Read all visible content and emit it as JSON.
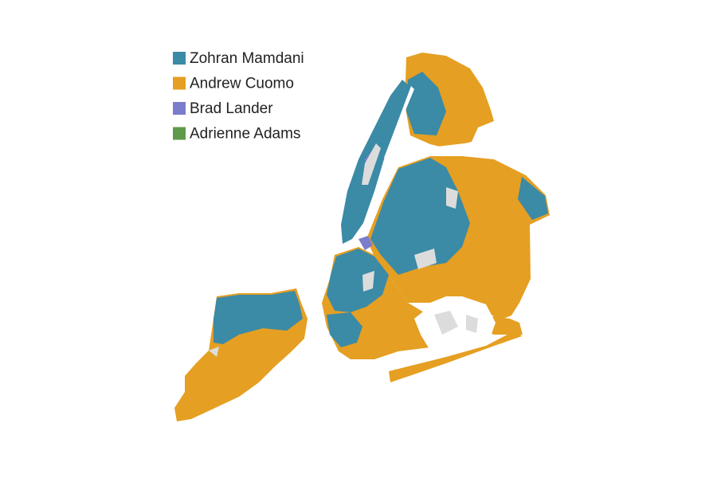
{
  "legend": [
    {
      "label": "Zohran Mamdani",
      "color": "#3b8aa6"
    },
    {
      "label": "Andrew Cuomo",
      "color": "#e59f22"
    },
    {
      "label": "Brad Lander",
      "color": "#7b7ccc"
    },
    {
      "label": "Adrienne Adams",
      "color": "#5f9a4a"
    }
  ]
}
